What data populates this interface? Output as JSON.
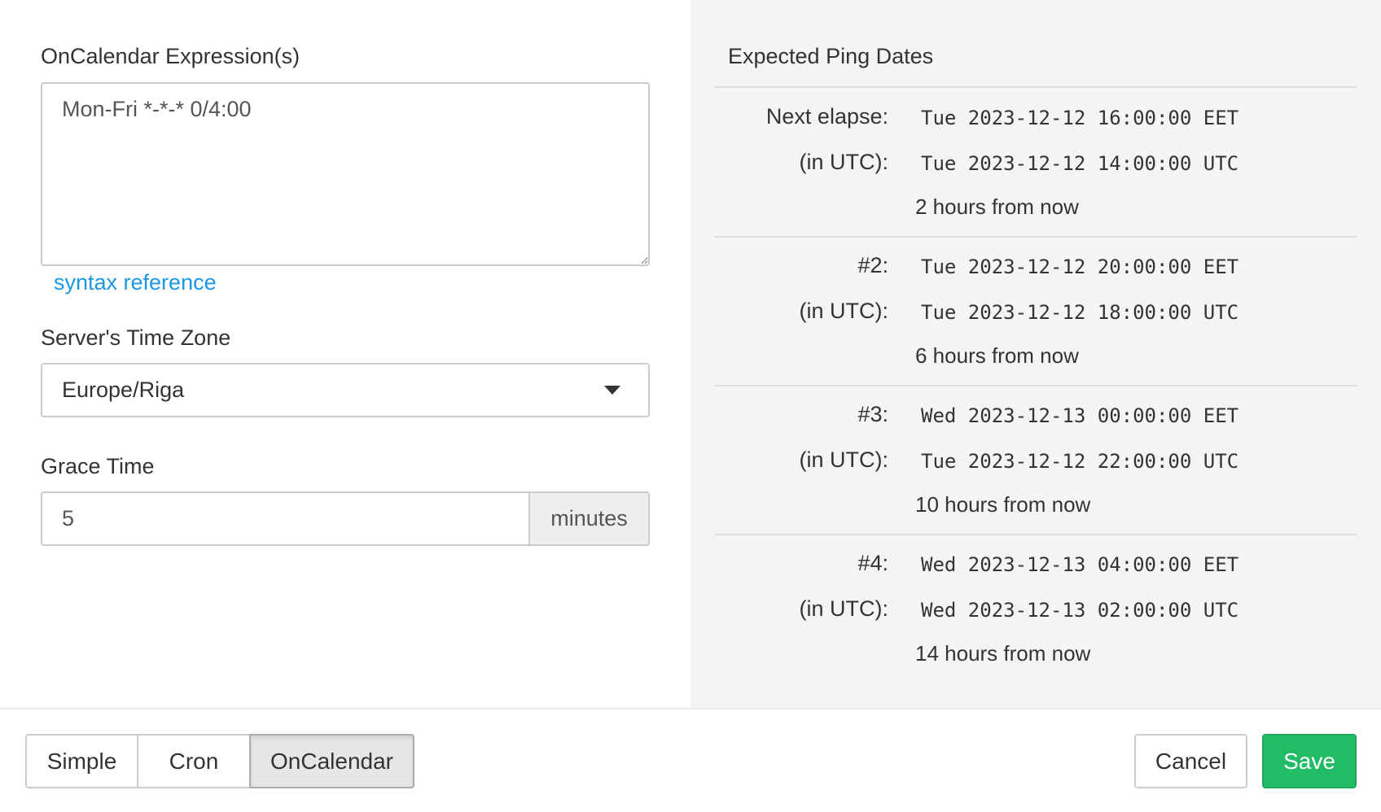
{
  "form": {
    "expression_label": "OnCalendar Expression(s)",
    "expression_value": "Mon-Fri *-*-* 0/4:00",
    "syntax_link": "syntax reference",
    "timezone_label": "Server's Time Zone",
    "timezone_value": "Europe/Riga",
    "grace_label": "Grace Time",
    "grace_value": "5",
    "grace_unit": "minutes"
  },
  "preview": {
    "title": "Expected Ping Dates",
    "entries": [
      {
        "label": "Next elapse:",
        "local": "Tue 2023-12-12 16:00:00 EET",
        "utc_label": "(in UTC):",
        "utc": "Tue 2023-12-12 14:00:00 UTC",
        "relative": "2 hours from now"
      },
      {
        "label": "#2:",
        "local": "Tue 2023-12-12 20:00:00 EET",
        "utc_label": "(in UTC):",
        "utc": "Tue 2023-12-12 18:00:00 UTC",
        "relative": "6 hours from now"
      },
      {
        "label": "#3:",
        "local": "Wed 2023-12-13 00:00:00 EET",
        "utc_label": "(in UTC):",
        "utc": "Tue 2023-12-12 22:00:00 UTC",
        "relative": "10 hours from now"
      },
      {
        "label": "#4:",
        "local": "Wed 2023-12-13 04:00:00 EET",
        "utc_label": "(in UTC):",
        "utc": "Wed 2023-12-13 02:00:00 UTC",
        "relative": "14 hours from now"
      }
    ]
  },
  "footer": {
    "modes": [
      "Simple",
      "Cron",
      "OnCalendar"
    ],
    "active_mode": "OnCalendar",
    "cancel": "Cancel",
    "save": "Save"
  },
  "colors": {
    "save": "#22bb66",
    "link": "#1b97e3",
    "panel": "#f4f4f4"
  }
}
